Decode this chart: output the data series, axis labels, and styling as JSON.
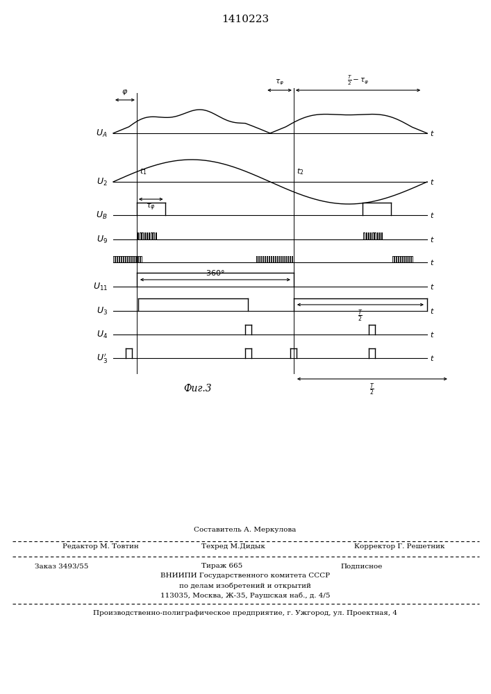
{
  "title": "1410223",
  "fig_label": "Фиг.3",
  "background_color": "#ffffff",
  "footer_lines": [
    "Составитель А. Меркулова",
    "Редактор М. Товтин",
    "Техред М.Дидык",
    "Корректор Г. Решетник",
    "Заказ 3493/55",
    "Тираж 665",
    "Подписное",
    "ВНИИПИ Государственного комитета СССР",
    "по делам изобретений и открытий",
    "113035, Москва, Ж-35, Раушская наб., д. 4/5",
    "Производственно-полиграфическое предприятие, г. Ужгород, ул. Проектная, 4"
  ]
}
